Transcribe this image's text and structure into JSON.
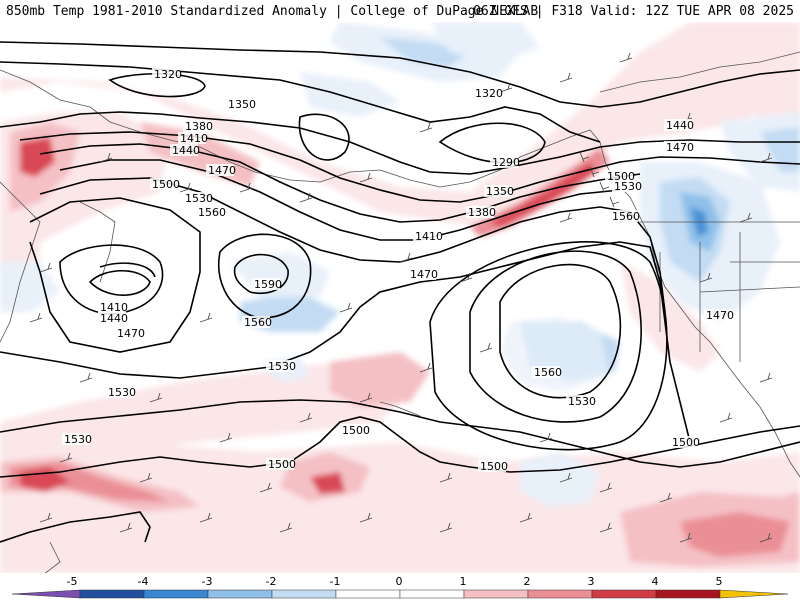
{
  "header": {
    "title_left": "850mb Temp 1981-2010 Standardized Anomaly | College of DuPage NEXLAB",
    "title_right": "06Z GFS | F318 Valid: 12Z TUE APR 08 2025"
  },
  "colors": {
    "land_line": "#555555",
    "contour": "#000000",
    "barb": "#4a4a4a",
    "anom_neg": [
      "#e8f0fa",
      "#c3dcf3",
      "#8fc0ea",
      "#4a90d6",
      "#1f5aa8",
      "#7a4fb0"
    ],
    "anom_pos": [
      "#fbe6e8",
      "#f4c0c4",
      "#ea8f95",
      "#d84a54",
      "#b31a26",
      "#7e0c18",
      "#f2c200"
    ]
  },
  "contour_labels": [
    {
      "value": "1320"
    },
    {
      "value": "1350"
    },
    {
      "value": "1380"
    },
    {
      "value": "1410"
    },
    {
      "value": "1440"
    },
    {
      "value": "1470"
    },
    {
      "value": "1500"
    },
    {
      "value": "1530"
    },
    {
      "value": "1560"
    },
    {
      "value": "1590"
    },
    {
      "value": "1410"
    },
    {
      "value": "1440"
    },
    {
      "value": "1470"
    },
    {
      "value": "1560"
    },
    {
      "value": "1530"
    },
    {
      "value": "1530"
    },
    {
      "value": "1530"
    },
    {
      "value": "1500"
    },
    {
      "value": "1500"
    },
    {
      "value": "1320"
    },
    {
      "value": "1290"
    },
    {
      "value": "1350"
    },
    {
      "value": "1380"
    },
    {
      "value": "1410"
    },
    {
      "value": "1470"
    },
    {
      "value": "1560"
    },
    {
      "value": "1530"
    },
    {
      "value": "1500"
    },
    {
      "value": "1500"
    },
    {
      "value": "1500"
    },
    {
      "value": "1530"
    },
    {
      "value": "1560"
    },
    {
      "value": "1440"
    },
    {
      "value": "1470"
    },
    {
      "value": "1470"
    }
  ],
  "legend": {
    "ticks": [
      "-5",
      "-4",
      "-3",
      "-2",
      "-1",
      "0",
      "1",
      "2",
      "3",
      "4",
      "5"
    ]
  }
}
